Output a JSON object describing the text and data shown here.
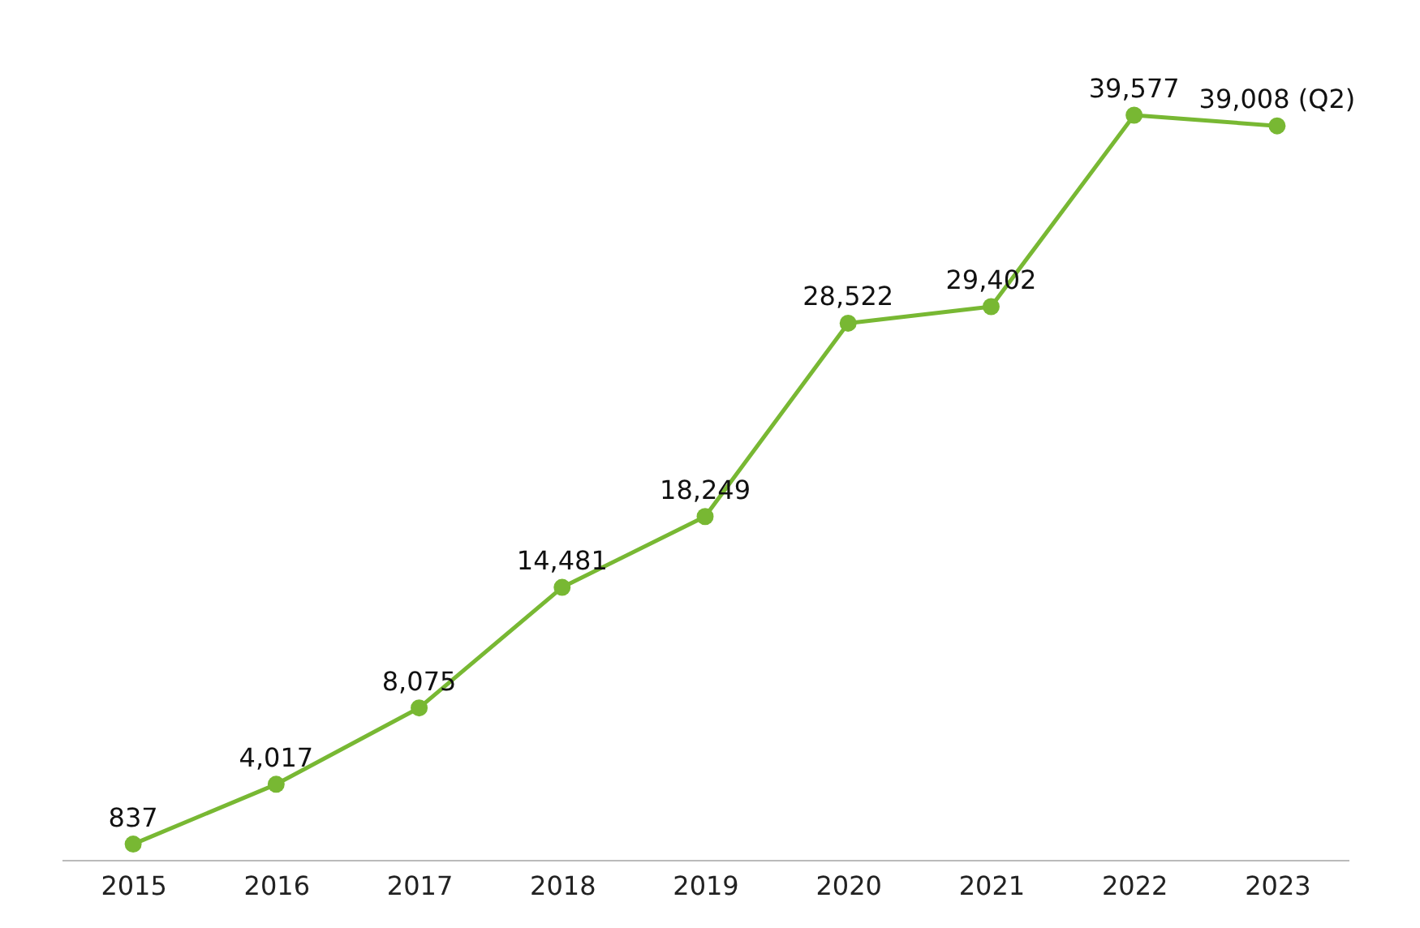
{
  "chart_data": {
    "type": "line",
    "categories": [
      "2015",
      "2016",
      "2017",
      "2018",
      "2019",
      "2020",
      "2021",
      "2022",
      "2023"
    ],
    "series": [
      {
        "color": "#78b833",
        "values": [
          837,
          4017,
          8075,
          14481,
          18249,
          28522,
          29402,
          39577,
          39008
        ],
        "value_labels": [
          "837",
          "4,017",
          "8,075",
          "14,481",
          "18,249",
          "28,522",
          "29,402",
          "39,577",
          "39,008 (Q2)"
        ]
      }
    ],
    "marker": "circle",
    "line_style": "solid"
  }
}
